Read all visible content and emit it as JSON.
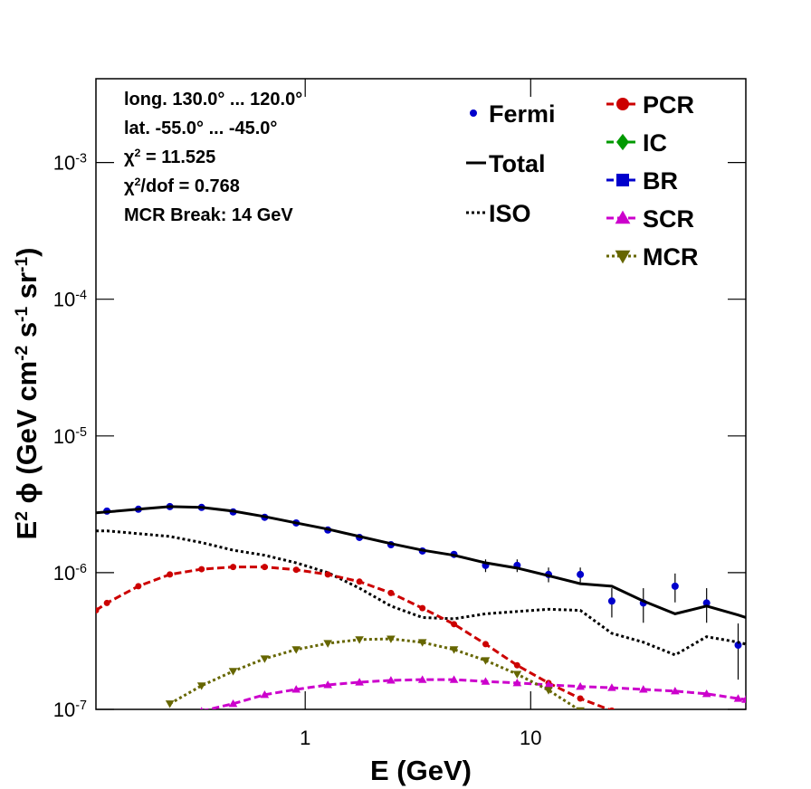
{
  "chart_data": {
    "type": "line",
    "log_x": true,
    "log_y": true,
    "xlabel": "E (GeV)",
    "ylabel": [
      "E",
      "2",
      " ϕ (GeV cm",
      "-2",
      " s",
      "-1",
      " sr",
      "-1",
      ")"
    ],
    "annotations": [
      [
        "long. 130.0° ... 120.0°"
      ],
      [
        "lat. -55.0° ... -45.0°"
      ],
      [
        "χ",
        "2",
        " = 11.525"
      ],
      [
        "χ",
        "2",
        "/dof = 0.768"
      ],
      [
        "MCR Break: 14 GeV"
      ]
    ],
    "xlim": [
      0.118,
      90
    ],
    "ylim": [
      1e-07,
      0.0041
    ],
    "xticks": [
      1,
      10
    ],
    "yticks": [
      {
        "value": 1e-07,
        "label": "10",
        "sup": "-7"
      },
      {
        "value": 1e-06,
        "label": "10",
        "sup": "-6"
      },
      {
        "value": 1e-05,
        "label": "10",
        "sup": "-5"
      },
      {
        "value": 0.0001,
        "label": "10",
        "sup": "-4"
      },
      {
        "value": 0.001,
        "label": "10",
        "sup": "-3"
      }
    ],
    "x": [
      0.118,
      0.132,
      0.182,
      0.251,
      0.347,
      0.479,
      0.661,
      0.912,
      1.26,
      1.74,
      2.4,
      3.31,
      4.57,
      6.31,
      8.71,
      12,
      16.6,
      22.9,
      31.6,
      43.7,
      60.3,
      83.2,
      90
    ],
    "series": [
      {
        "name": "Fermi",
        "color": "#0000cc",
        "marker": "circle",
        "line": "none",
        "values": [
          null,
          2.82e-06,
          2.91e-06,
          3.04e-06,
          3e-06,
          2.78e-06,
          2.54e-06,
          2.31e-06,
          2.05e-06,
          1.81e-06,
          1.6e-06,
          1.44e-06,
          1.36e-06,
          1.13e-06,
          1.13e-06,
          9.7e-07,
          9.7e-07,
          6.2e-07,
          6e-07,
          7.96e-07,
          6e-07,
          2.95e-07,
          null
        ],
        "errors": [
          null,
          5e-08,
          5e-08,
          5e-08,
          5e-08,
          5e-08,
          5e-08,
          5e-08,
          5e-08,
          5e-08,
          5e-08,
          5e-08,
          5e-08,
          1.2e-07,
          1.2e-07,
          1.2e-07,
          1.2e-07,
          1.5e-07,
          1.7e-07,
          1.9e-07,
          1.7e-07,
          1.3e-07,
          null
        ]
      },
      {
        "name": "Total",
        "color": "#000000",
        "marker": "none",
        "line": "solid",
        "values": [
          2.74e-06,
          2.78e-06,
          2.91e-06,
          3.04e-06,
          3e-06,
          2.82e-06,
          2.57e-06,
          2.31e-06,
          2.08e-06,
          1.84e-06,
          1.63e-06,
          1.46e-06,
          1.34e-06,
          1.18e-06,
          1.08e-06,
          9.5e-07,
          8.3e-07,
          7.96e-07,
          6.2e-07,
          5e-07,
          5.7e-07,
          4.9e-07,
          4.7e-07
        ]
      },
      {
        "name": "ISO",
        "color": "#000000",
        "marker": "none",
        "line": "dotted",
        "values": [
          2.02e-06,
          2.02e-06,
          1.93e-06,
          1.84e-06,
          1.66e-06,
          1.46e-06,
          1.34e-06,
          1.18e-06,
          1e-06,
          7.7e-07,
          5.7e-07,
          4.7e-07,
          4.6e-07,
          5e-07,
          5.2e-07,
          5.4e-07,
          5.3e-07,
          3.6e-07,
          3.1e-07,
          2.5e-07,
          3.4e-07,
          3.1e-07,
          3e-07
        ]
      },
      {
        "name": "PCR",
        "color": "#cc0000",
        "marker": "circle",
        "line": "dashed",
        "values": [
          5.3e-07,
          6e-07,
          7.96e-07,
          9.7e-07,
          1.06e-06,
          1.1e-06,
          1.1e-06,
          1.05e-06,
          9.7e-07,
          8.6e-07,
          7.1e-07,
          5.5e-07,
          4.2e-07,
          3e-07,
          2.1e-07,
          1.56e-07,
          1.2e-07,
          9.8e-08,
          null,
          null,
          null,
          null,
          null
        ]
      },
      {
        "name": "IC",
        "color": "#009900",
        "marker": "diamond",
        "line": "dashed",
        "values": [
          null,
          null,
          null,
          null,
          null,
          null,
          null,
          null,
          null,
          null,
          null,
          null,
          null,
          null,
          null,
          null,
          null,
          null,
          null,
          null,
          null,
          null,
          null
        ]
      },
      {
        "name": "BR",
        "color": "#0000cc",
        "marker": "square",
        "line": "dashed",
        "values": [
          null,
          null,
          null,
          null,
          null,
          null,
          null,
          null,
          null,
          null,
          null,
          null,
          null,
          null,
          null,
          null,
          null,
          null,
          null,
          null,
          null,
          null,
          null
        ]
      },
      {
        "name": "SCR",
        "color": "#cc00cc",
        "marker": "triangle-up",
        "line": "dashed",
        "values": [
          null,
          null,
          null,
          null,
          9.7e-08,
          1.1e-07,
          1.28e-07,
          1.4e-07,
          1.51e-07,
          1.58e-07,
          1.63e-07,
          1.65e-07,
          1.65e-07,
          1.6e-07,
          1.56e-07,
          1.51e-07,
          1.47e-07,
          1.44e-07,
          1.4e-07,
          1.36e-07,
          1.3e-07,
          1.2e-07,
          1.18e-07
        ]
      },
      {
        "name": "MCR",
        "color": "#666600",
        "marker": "triangle-down",
        "line": "dotted",
        "values": [
          null,
          null,
          null,
          1.1e-07,
          1.49e-07,
          1.9e-07,
          2.35e-07,
          2.74e-07,
          3.04e-07,
          3.24e-07,
          3.28e-07,
          3.09e-07,
          2.74e-07,
          2.28e-07,
          1.81e-07,
          1.38e-07,
          9.8e-08,
          null,
          null,
          null,
          null,
          null,
          null
        ]
      }
    ]
  }
}
